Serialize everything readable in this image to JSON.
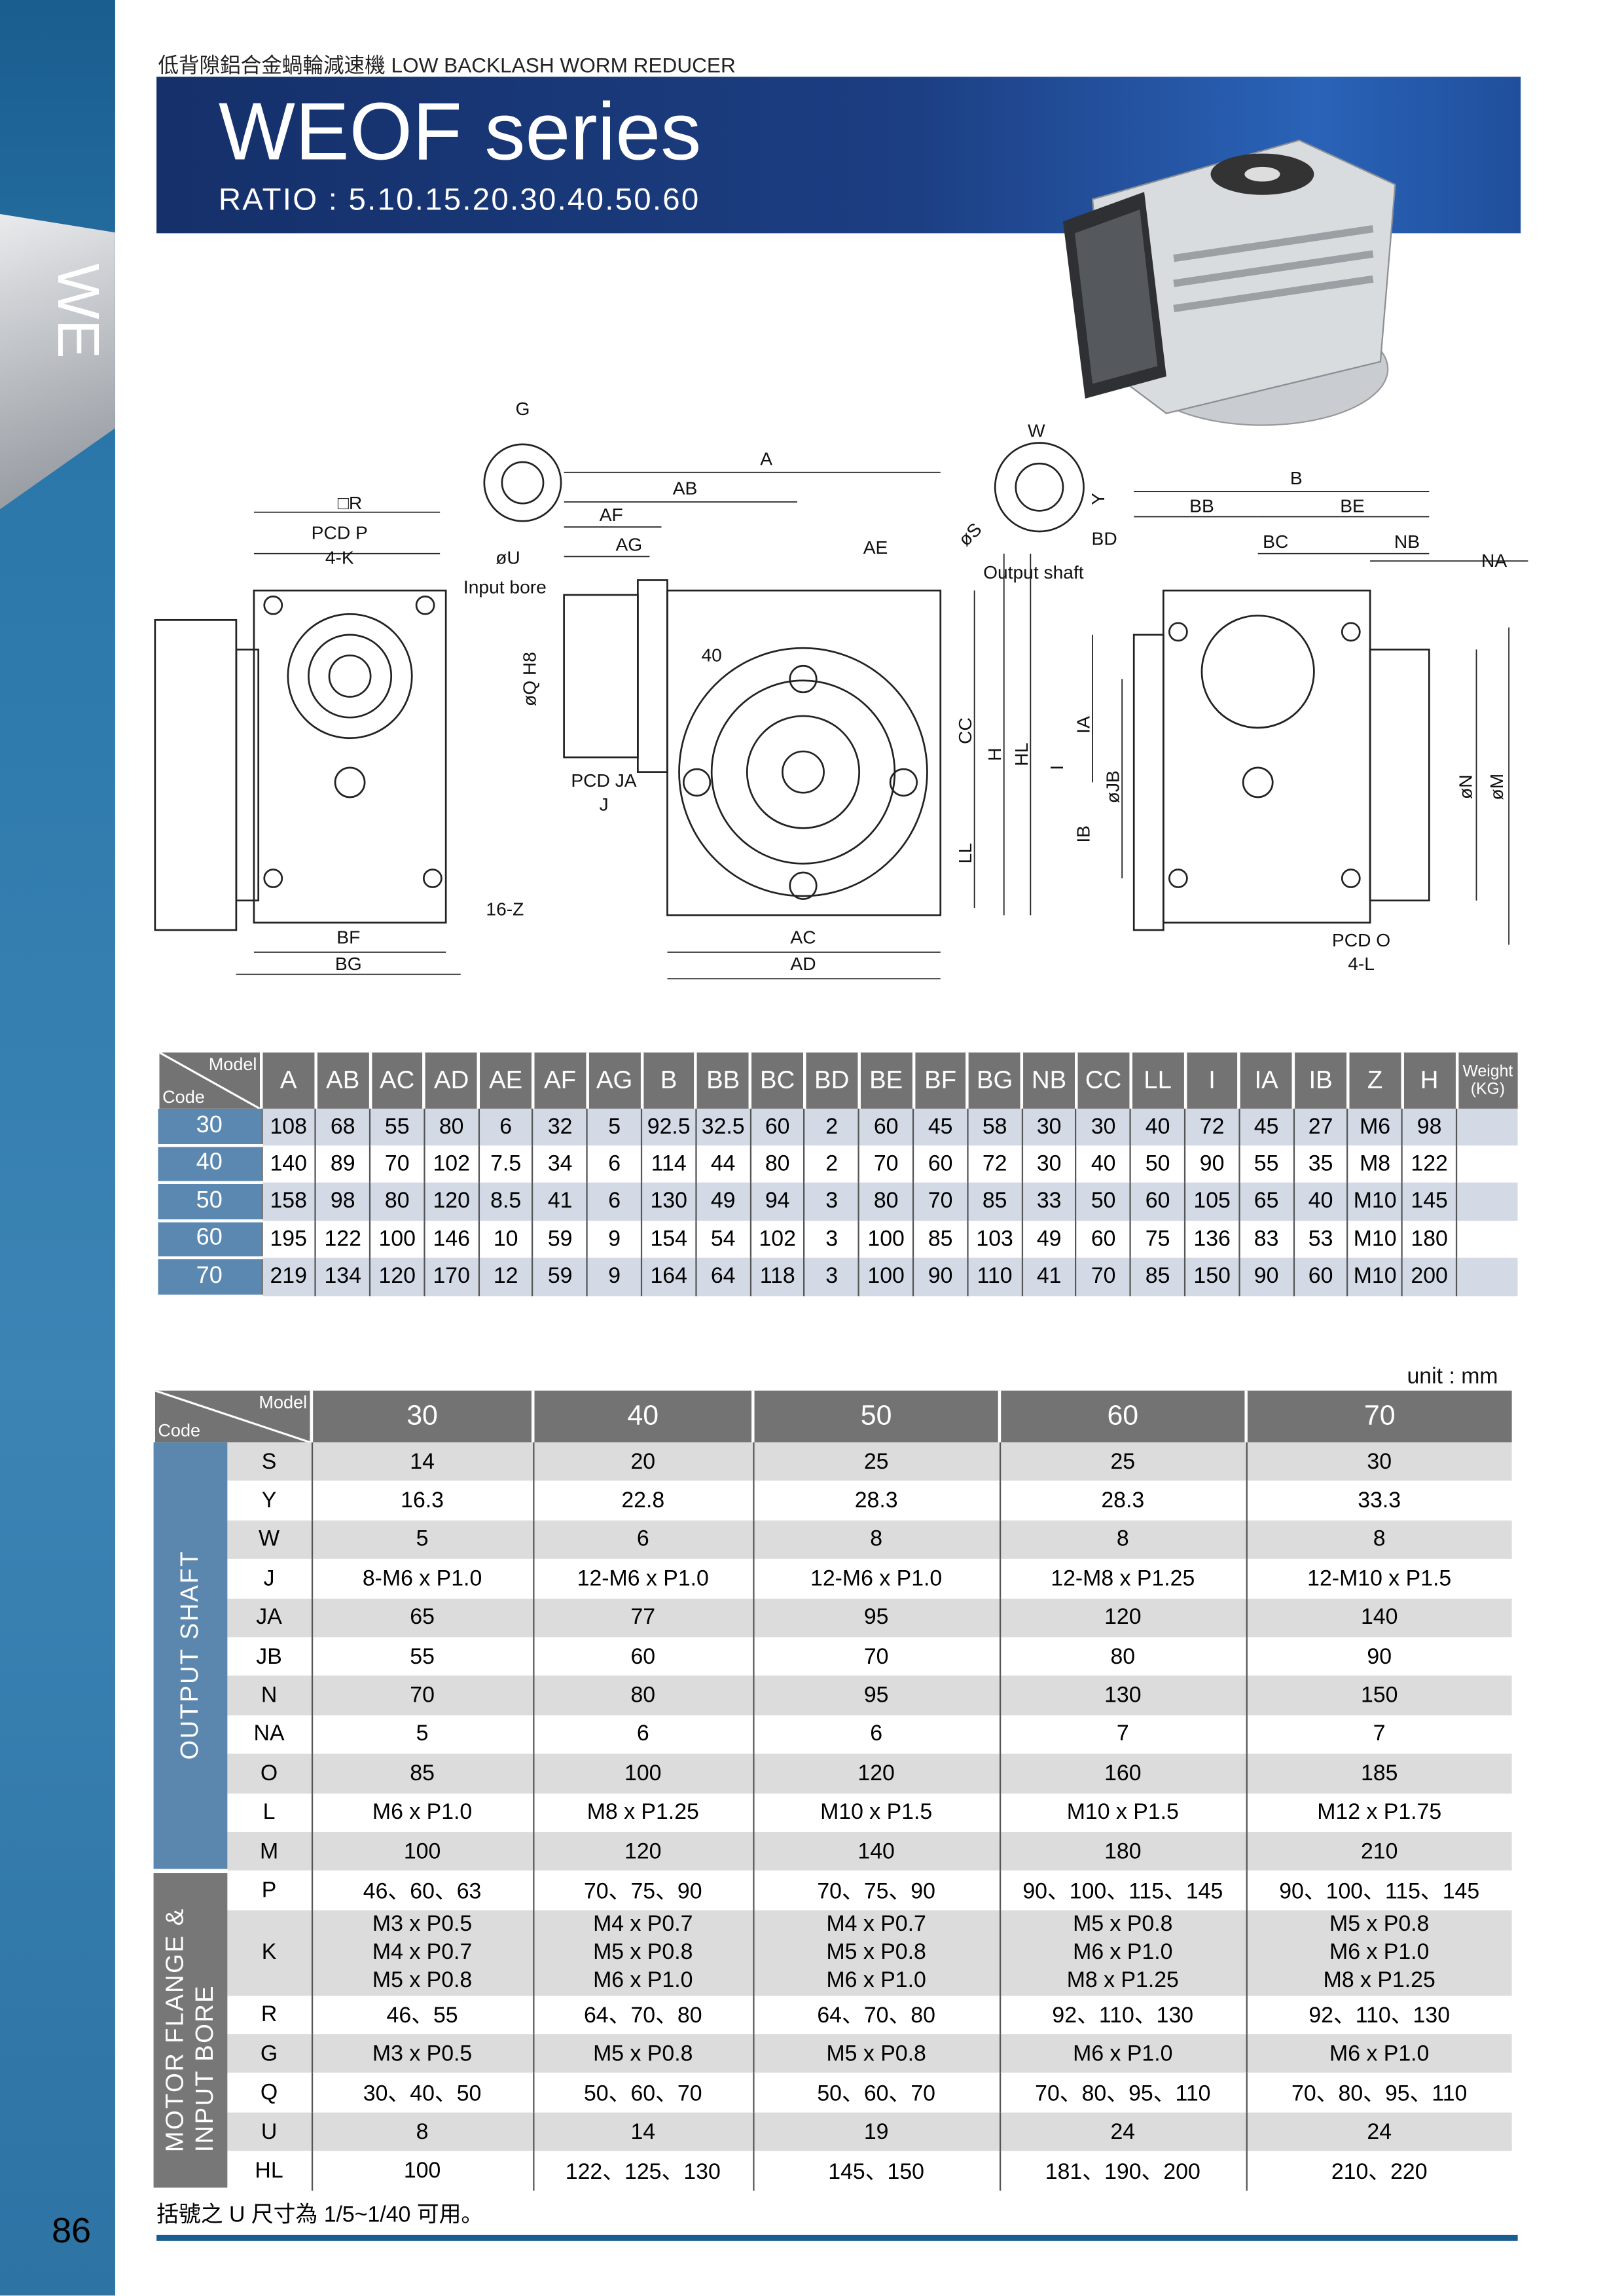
{
  "sidebar": {
    "tab": "WE"
  },
  "header": {
    "subtitle": "低背隙鋁合金蝸輪減速機  LOW BACKLASH WORM REDUCER",
    "title": "WEOF series",
    "ratio": "RATIO : 5.10.15.20.30.40.50.60"
  },
  "drawing": {
    "labels": {
      "G": "G",
      "A": "A",
      "AB": "AB",
      "R": "□R",
      "PCDP": "PCD P",
      "K": "4-K",
      "AF": "AF",
      "AG": "AG",
      "U": "øU",
      "input_bore": "Input bore",
      "Q": "øQ H8",
      "forty": "40",
      "PCDJA": "PCD JA",
      "J": "J",
      "Z": "16-Z",
      "BF": "BF",
      "BG": "BG",
      "AC": "AC",
      "AD": "AD",
      "AE": "AE",
      "S": "øS",
      "W": "W",
      "Y": "Y",
      "BD": "BD",
      "output_shaft": "Output shaft",
      "CC": "CC",
      "H": "H",
      "HL": "HL",
      "I": "I",
      "IA": "IA",
      "JB": "øJB",
      "IB": "IB",
      "LL": "LL",
      "B": "B",
      "BB": "BB",
      "BE": "BE",
      "BC": "BC",
      "NB": "NB",
      "NA": "NA",
      "N": "øN",
      "M": "øM",
      "PCDO": "PCD O",
      "L": "4-L"
    }
  },
  "table1": {
    "corner_model": "Model",
    "corner_code": "Code",
    "columns": [
      "A",
      "AB",
      "AC",
      "AD",
      "AE",
      "AF",
      "AG",
      "B",
      "BB",
      "BC",
      "BD",
      "BE",
      "BF",
      "BG",
      "NB",
      "CC",
      "LL",
      "I",
      "IA",
      "IB",
      "Z",
      "H"
    ],
    "weight_label": "Weight (KG)",
    "rows": [
      {
        "code": "30",
        "values": [
          "108",
          "68",
          "55",
          "80",
          "6",
          "32",
          "5",
          "92.5",
          "32.5",
          "60",
          "2",
          "60",
          "45",
          "58",
          "30",
          "30",
          "40",
          "72",
          "45",
          "27",
          "M6",
          "98"
        ],
        "weight": ""
      },
      {
        "code": "40",
        "values": [
          "140",
          "89",
          "70",
          "102",
          "7.5",
          "34",
          "6",
          "114",
          "44",
          "80",
          "2",
          "70",
          "60",
          "72",
          "30",
          "40",
          "50",
          "90",
          "55",
          "35",
          "M8",
          "122"
        ],
        "weight": ""
      },
      {
        "code": "50",
        "values": [
          "158",
          "98",
          "80",
          "120",
          "8.5",
          "41",
          "6",
          "130",
          "49",
          "94",
          "3",
          "80",
          "70",
          "85",
          "33",
          "50",
          "60",
          "105",
          "65",
          "40",
          "M10",
          "145"
        ],
        "weight": ""
      },
      {
        "code": "60",
        "values": [
          "195",
          "122",
          "100",
          "146",
          "10",
          "59",
          "9",
          "154",
          "54",
          "102",
          "3",
          "100",
          "85",
          "103",
          "49",
          "60",
          "75",
          "136",
          "83",
          "53",
          "M10",
          "180"
        ],
        "weight": ""
      },
      {
        "code": "70",
        "values": [
          "219",
          "134",
          "120",
          "170",
          "12",
          "59",
          "9",
          "164",
          "64",
          "118",
          "3",
          "100",
          "90",
          "110",
          "41",
          "70",
          "85",
          "150",
          "90",
          "60",
          "M10",
          "200"
        ]
      }
    ]
  },
  "unit": "unit : mm",
  "table2": {
    "corner_model": "Model",
    "corner_code": "Code",
    "models": [
      "30",
      "40",
      "50",
      "60",
      "70"
    ],
    "groups": [
      {
        "label": "OUTPUT  SHAFT",
        "color": "#5b86ad",
        "rows": [
          {
            "code": "S",
            "values": [
              "14",
              "20",
              "25",
              "25",
              "30"
            ]
          },
          {
            "code": "Y",
            "values": [
              "16.3",
              "22.8",
              "28.3",
              "28.3",
              "33.3"
            ]
          },
          {
            "code": "W",
            "values": [
              "5",
              "6",
              "8",
              "8",
              "8"
            ]
          },
          {
            "code": "J",
            "values": [
              "8-M6 x P1.0",
              "12-M6 x P1.0",
              "12-M6 x P1.0",
              "12-M8 x P1.25",
              "12-M10 x P1.5"
            ]
          },
          {
            "code": "JA",
            "values": [
              "65",
              "77",
              "95",
              "120",
              "140"
            ]
          },
          {
            "code": "JB",
            "values": [
              "55",
              "60",
              "70",
              "80",
              "90"
            ]
          },
          {
            "code": "N",
            "values": [
              "70",
              "80",
              "95",
              "130",
              "150"
            ]
          },
          {
            "code": "NA",
            "values": [
              "5",
              "6",
              "6",
              "7",
              "7"
            ]
          },
          {
            "code": "O",
            "values": [
              "85",
              "100",
              "120",
              "160",
              "185"
            ]
          },
          {
            "code": "L",
            "values": [
              "M6 x P1.0",
              "M8 x P1.25",
              "M10 x P1.5",
              "M10 x P1.5",
              "M12 x P1.75"
            ]
          },
          {
            "code": "M",
            "values": [
              "100",
              "120",
              "140",
              "180",
              "210"
            ]
          }
        ]
      },
      {
        "label": "MOTOR  FLANGE  &\nINPUT  BORE",
        "label_line1": "MOTOR  FLANGE  &",
        "label_line2": "INPUT  BORE",
        "color": "#777777",
        "rows": [
          {
            "code": "P",
            "values": [
              "46、60、63",
              "70、75、90",
              "70、75、90",
              "90、100、115、145",
              "90、100、115、145"
            ]
          },
          {
            "code": "K",
            "values": [
              "M3 x P0.5\nM4 x P0.7\nM5 x P0.8",
              "M4 x P0.7\nM5 x P0.8\nM6 x P1.0",
              "M4 x P0.7\nM5 x P0.8\nM6 x P1.0",
              "M5 x P0.8\nM6 x P1.0\nM8 x P1.25",
              "M5 x P0.8\nM6 x P1.0\nM8 x P1.25"
            ]
          },
          {
            "code": "R",
            "values": [
              "46、55",
              "64、70、80",
              "64、70、80",
              "92、110、130",
              "92、110、130"
            ]
          },
          {
            "code": "G",
            "values": [
              "M3 x P0.5",
              "M5 x P0.8",
              "M5 x P0.8",
              "M6 x P1.0",
              "M6 x P1.0"
            ]
          },
          {
            "code": "Q",
            "values": [
              "30、40、50",
              "50、60、70",
              "50、60、70",
              "70、80、95、110",
              "70、80、95、110"
            ]
          },
          {
            "code": "U",
            "values": [
              "8",
              "14",
              "19",
              "24",
              "24"
            ]
          },
          {
            "code": "HL",
            "values": [
              "100",
              "122、125、130",
              "145、150",
              "181、190、200",
              "210、220"
            ]
          }
        ]
      }
    ]
  },
  "footnote": "括號之 U 尺寸為 1/5~1/40 可用。",
  "page_number": "86",
  "colors": {
    "sidebar": "#2b77aa",
    "banner": "#1c3e82",
    "header_gray": "#737373",
    "code_blue": "#5a88b0",
    "row_blue": "#d3dae6",
    "row_gray": "#dcdcdc"
  }
}
